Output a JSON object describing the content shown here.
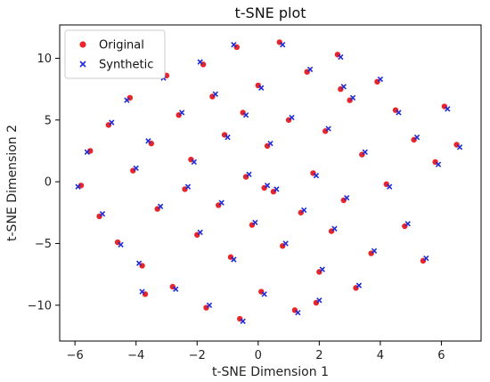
{
  "chart_data": {
    "type": "scatter",
    "title": "t-SNE plot",
    "xlabel": "t-SNE Dimension 1",
    "ylabel": "t-SNE Dimension 2",
    "xlim": [
      -6.5,
      7.3
    ],
    "ylim": [
      -12.9,
      12.7
    ],
    "xticks": [
      -6,
      -4,
      -2,
      0,
      2,
      4,
      6
    ],
    "yticks": [
      -10,
      -5,
      0,
      5,
      10
    ],
    "grid": false,
    "legend": {
      "position": "upper-left"
    },
    "series": [
      {
        "name": "Original",
        "marker": "circle",
        "color": "#e8262a",
        "points": [
          [
            -5.8,
            -0.3
          ],
          [
            -5.5,
            2.5
          ],
          [
            -5.2,
            -2.8
          ],
          [
            -4.9,
            4.6
          ],
          [
            -4.6,
            -4.9
          ],
          [
            -4.2,
            6.8
          ],
          [
            -4.1,
            0.9
          ],
          [
            -3.8,
            -6.8
          ],
          [
            -3.5,
            3.1
          ],
          [
            -3.3,
            -2.2
          ],
          [
            -3.0,
            8.6
          ],
          [
            -2.8,
            -8.5
          ],
          [
            -2.6,
            5.4
          ],
          [
            -2.4,
            -0.6
          ],
          [
            -2.2,
            1.8
          ],
          [
            -2.0,
            -4.3
          ],
          [
            -1.8,
            9.5
          ],
          [
            -1.7,
            -10.2
          ],
          [
            -1.5,
            6.9
          ],
          [
            -1.3,
            -1.9
          ],
          [
            -1.1,
            3.8
          ],
          [
            -0.9,
            -6.1
          ],
          [
            -0.7,
            10.9
          ],
          [
            -0.6,
            -11.1
          ],
          [
            -0.4,
            0.4
          ],
          [
            -0.2,
            -3.5
          ],
          [
            0.0,
            7.8
          ],
          [
            0.1,
            -8.9
          ],
          [
            0.3,
            2.9
          ],
          [
            0.5,
            -0.8
          ],
          [
            0.7,
            11.3
          ],
          [
            0.8,
            -5.2
          ],
          [
            1.0,
            5.0
          ],
          [
            1.2,
            -10.4
          ],
          [
            1.4,
            -2.5
          ],
          [
            1.6,
            8.9
          ],
          [
            1.8,
            0.7
          ],
          [
            2.0,
            -7.3
          ],
          [
            2.2,
            4.1
          ],
          [
            2.4,
            -4.0
          ],
          [
            2.6,
            10.3
          ],
          [
            2.8,
            -1.5
          ],
          [
            3.0,
            6.6
          ],
          [
            3.2,
            -8.6
          ],
          [
            3.4,
            2.2
          ],
          [
            3.7,
            -5.8
          ],
          [
            3.9,
            8.1
          ],
          [
            4.2,
            -0.2
          ],
          [
            4.5,
            5.8
          ],
          [
            4.8,
            -3.6
          ],
          [
            5.1,
            3.4
          ],
          [
            5.4,
            -6.4
          ],
          [
            5.8,
            1.6
          ],
          [
            6.1,
            6.1
          ],
          [
            6.5,
            3.0
          ],
          [
            -3.7,
            -9.1
          ],
          [
            1.9,
            -9.8
          ],
          [
            -0.5,
            5.6
          ],
          [
            0.2,
            -0.5
          ],
          [
            2.7,
            7.5
          ]
        ]
      },
      {
        "name": "Synthetic",
        "marker": "x",
        "color": "#1f2bd6",
        "points": [
          [
            -5.9,
            -0.4
          ],
          [
            -5.6,
            2.4
          ],
          [
            -5.1,
            -2.6
          ],
          [
            -4.8,
            4.8
          ],
          [
            -4.5,
            -5.1
          ],
          [
            -4.3,
            6.6
          ],
          [
            -4.0,
            1.1
          ],
          [
            -3.9,
            -6.6
          ],
          [
            -3.6,
            3.3
          ],
          [
            -3.2,
            -2.0
          ],
          [
            -3.1,
            8.4
          ],
          [
            -2.7,
            -8.7
          ],
          [
            -2.5,
            5.6
          ],
          [
            -2.3,
            -0.4
          ],
          [
            -2.1,
            1.6
          ],
          [
            -1.9,
            -4.1
          ],
          [
            -1.9,
            9.7
          ],
          [
            -1.6,
            -10.0
          ],
          [
            -1.4,
            7.1
          ],
          [
            -1.2,
            -1.7
          ],
          [
            -1.0,
            3.6
          ],
          [
            -0.8,
            -6.3
          ],
          [
            -0.8,
            11.1
          ],
          [
            -0.5,
            -11.3
          ],
          [
            -0.3,
            0.6
          ],
          [
            -0.1,
            -3.3
          ],
          [
            0.1,
            7.6
          ],
          [
            0.2,
            -9.1
          ],
          [
            0.4,
            3.1
          ],
          [
            0.6,
            -0.6
          ],
          [
            0.8,
            11.1
          ],
          [
            0.9,
            -5.0
          ],
          [
            1.1,
            5.2
          ],
          [
            1.3,
            -10.6
          ],
          [
            1.5,
            -2.3
          ],
          [
            1.7,
            9.1
          ],
          [
            1.9,
            0.5
          ],
          [
            2.1,
            -7.1
          ],
          [
            2.3,
            4.3
          ],
          [
            2.5,
            -3.8
          ],
          [
            2.7,
            10.1
          ],
          [
            2.9,
            -1.3
          ],
          [
            3.1,
            6.8
          ],
          [
            3.3,
            -8.4
          ],
          [
            3.5,
            2.4
          ],
          [
            3.8,
            -5.6
          ],
          [
            4.0,
            8.3
          ],
          [
            4.3,
            -0.4
          ],
          [
            4.6,
            5.6
          ],
          [
            4.9,
            -3.4
          ],
          [
            5.2,
            3.6
          ],
          [
            5.5,
            -6.2
          ],
          [
            5.9,
            1.4
          ],
          [
            6.2,
            5.9
          ],
          [
            6.6,
            2.8
          ],
          [
            -3.8,
            -8.9
          ],
          [
            2.0,
            -9.6
          ],
          [
            -0.4,
            5.4
          ],
          [
            0.3,
            -0.3
          ],
          [
            2.8,
            7.7
          ]
        ]
      }
    ]
  }
}
